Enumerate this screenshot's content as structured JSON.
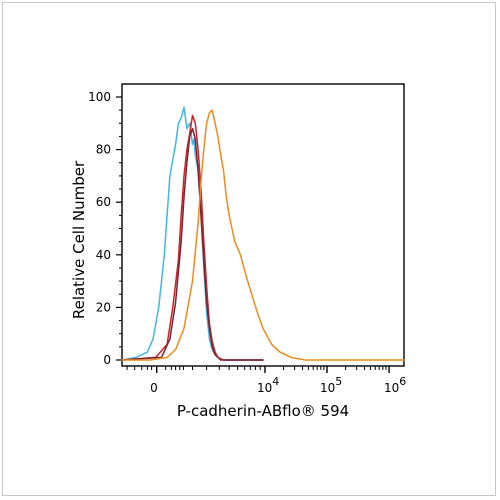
{
  "chart_data": {
    "type": "line",
    "title": "",
    "xlabel": "P-cadherin-ABflo® 594",
    "ylabel": "Relative Cell Number",
    "x_scale": "biexponential",
    "x_tick_labels": [
      {
        "base": "0",
        "exp": ""
      },
      {
        "base": "10",
        "exp": "4"
      },
      {
        "base": "10",
        "exp": "5"
      },
      {
        "base": "10",
        "exp": "6"
      }
    ],
    "y_ticks": [
      0,
      20,
      40,
      60,
      80,
      100
    ],
    "ylim": [
      0,
      100
    ],
    "grid": false,
    "legend": "none",
    "series": [
      {
        "color": "#41b6e6",
        "x_channel": [
          0.0,
          0.05,
          0.09,
          0.11,
          0.13,
          0.15,
          0.16,
          0.17,
          0.19,
          0.2,
          0.21,
          0.22,
          0.23,
          0.24,
          0.25,
          0.255,
          0.26,
          0.27,
          0.28,
          0.29,
          0.3,
          0.31,
          0.32,
          0.33,
          0.34,
          0.36,
          0.4,
          0.45,
          0.5
        ],
        "values": [
          0,
          1,
          3,
          8,
          20,
          40,
          55,
          70,
          82,
          90,
          92,
          96,
          88,
          90,
          82,
          84,
          78,
          72,
          55,
          35,
          18,
          8,
          4,
          2,
          1,
          0,
          0,
          0,
          0
        ]
      },
      {
        "color": "#cc2127",
        "x_channel": [
          0.0,
          0.12,
          0.16,
          0.18,
          0.2,
          0.21,
          0.22,
          0.23,
          0.24,
          0.25,
          0.26,
          0.27,
          0.28,
          0.29,
          0.3,
          0.31,
          0.32,
          0.33,
          0.34,
          0.36,
          0.4,
          0.45,
          0.5
        ],
        "values": [
          0,
          1,
          6,
          20,
          38,
          55,
          70,
          80,
          86,
          93,
          90,
          80,
          65,
          45,
          28,
          14,
          7,
          3,
          1,
          0,
          0,
          0,
          0
        ]
      },
      {
        "color": "#7a2430",
        "x_channel": [
          0.0,
          0.14,
          0.17,
          0.19,
          0.21,
          0.22,
          0.23,
          0.24,
          0.25,
          0.26,
          0.27,
          0.28,
          0.29,
          0.3,
          0.31,
          0.32,
          0.33,
          0.35,
          0.4,
          0.5
        ],
        "values": [
          0,
          1,
          8,
          22,
          45,
          62,
          75,
          85,
          88,
          84,
          72,
          55,
          38,
          22,
          12,
          5,
          2,
          0,
          0,
          0
        ]
      },
      {
        "color": "#ef8a1f",
        "x_channel": [
          0.0,
          0.1,
          0.16,
          0.19,
          0.22,
          0.25,
          0.27,
          0.28,
          0.29,
          0.3,
          0.31,
          0.32,
          0.33,
          0.34,
          0.35,
          0.36,
          0.37,
          0.38,
          0.4,
          0.42,
          0.44,
          0.46,
          0.48,
          0.5,
          0.53,
          0.56,
          0.6,
          0.65,
          0.7,
          0.8,
          1.0
        ],
        "values": [
          0,
          0,
          1,
          4,
          12,
          30,
          52,
          68,
          80,
          90,
          94,
          95,
          90,
          85,
          78,
          72,
          62,
          55,
          45,
          40,
          32,
          25,
          18,
          12,
          6,
          3,
          1,
          0,
          0,
          0,
          0
        ]
      }
    ]
  }
}
